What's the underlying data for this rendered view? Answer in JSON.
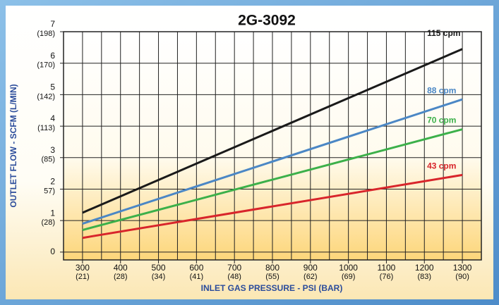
{
  "chart_data": {
    "type": "line",
    "title": "2G-3092",
    "x_label": "INLET GAS PRESSURE - PSI (BAR)",
    "y_label": "OUTLET FLOW - SCFM (L/MIN)",
    "x": [
      300,
      1300
    ],
    "series": [
      {
        "name": "115 cpm",
        "color": "#1a1a1a",
        "values": [
          1.25,
          6.45
        ]
      },
      {
        "name": "88 cpm",
        "color": "#4b87c5",
        "values": [
          0.9,
          4.85
        ]
      },
      {
        "name": "70 cpm",
        "color": "#3cb04a",
        "values": [
          0.7,
          3.9
        ]
      },
      {
        "name": "43 cpm",
        "color": "#d8252b",
        "values": [
          0.45,
          2.45
        ]
      }
    ],
    "xlim": [
      250,
      1350
    ],
    "xticks": [
      300,
      400,
      500,
      600,
      700,
      800,
      900,
      1000,
      1100,
      1200,
      1300
    ],
    "x_minor_ticks": [
      350,
      450,
      550,
      650,
      750,
      850,
      950,
      1050,
      1150,
      1250
    ],
    "x_metric_labels": [
      {
        "value": 300,
        "label": "(21)"
      },
      {
        "value": 400,
        "label": "(28)"
      },
      {
        "value": 500,
        "label": "(34)"
      },
      {
        "value": 600,
        "label": "(41)"
      },
      {
        "value": 700,
        "label": "(48)"
      },
      {
        "value": 800,
        "label": "(55)"
      },
      {
        "value": 900,
        "label": "(62)"
      },
      {
        "value": 1000,
        "label": "(69)"
      },
      {
        "value": 1100,
        "label": "(76)"
      },
      {
        "value": 1200,
        "label": "(83)"
      },
      {
        "value": 1300,
        "label": "(90)"
      }
    ],
    "ylim": [
      -0.25,
      7
    ],
    "yticks": [
      0,
      1,
      2,
      3,
      4,
      5,
      6,
      7
    ],
    "y_metric_labels": [
      {
        "value": 1,
        "label": "(28)"
      },
      {
        "value": 2,
        "label": "57)"
      },
      {
        "value": 3,
        "label": "(85)"
      },
      {
        "value": 4,
        "label": "(113)"
      },
      {
        "value": 5,
        "label": "(142)"
      },
      {
        "value": 6,
        "label": "(170)"
      },
      {
        "value": 7,
        "label": "(198)"
      }
    ],
    "grid": true
  }
}
